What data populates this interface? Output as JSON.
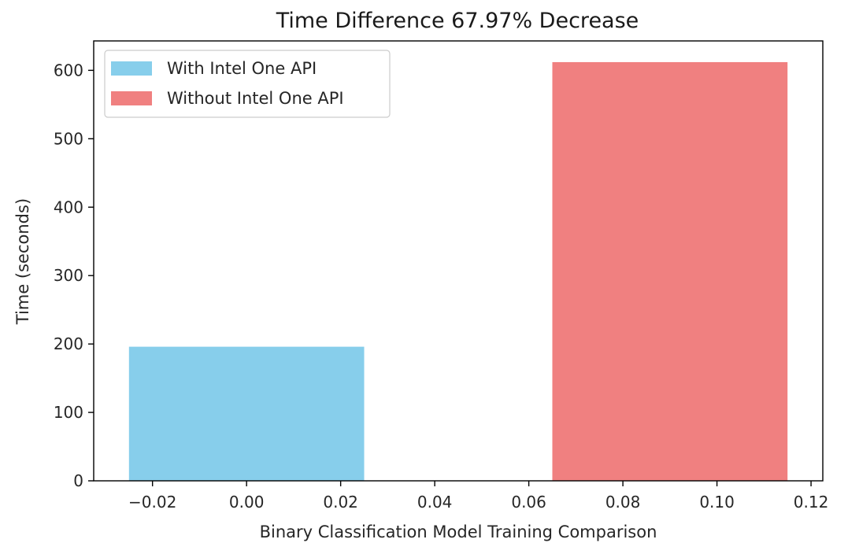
{
  "chart_data": {
    "type": "bar",
    "title": "Time Difference 67.97% Decrease",
    "xlabel": "Binary Classification Model Training Comparison",
    "ylabel": "Time (seconds)",
    "xlim": [
      -0.0325,
      0.1225
    ],
    "ylim": [
      0,
      643
    ],
    "bar_width": 0.05,
    "x_ticks": [
      -0.02,
      0.0,
      0.02,
      0.04,
      0.06,
      0.08,
      0.1,
      0.12
    ],
    "x_tick_labels": [
      "−0.02",
      "0.00",
      "0.02",
      "0.04",
      "0.06",
      "0.08",
      "0.10",
      "0.12"
    ],
    "y_ticks": [
      0,
      100,
      200,
      300,
      400,
      500,
      600
    ],
    "y_tick_labels": [
      "0",
      "100",
      "200",
      "300",
      "400",
      "500",
      "600"
    ],
    "grid": false,
    "legend_position": "upper-left",
    "series": [
      {
        "name": "With Intel One API",
        "x": 0.0,
        "value": 196,
        "color": "#87ceeb"
      },
      {
        "name": "Without Intel One API",
        "x": 0.09,
        "value": 612,
        "color": "#f08080"
      }
    ]
  }
}
